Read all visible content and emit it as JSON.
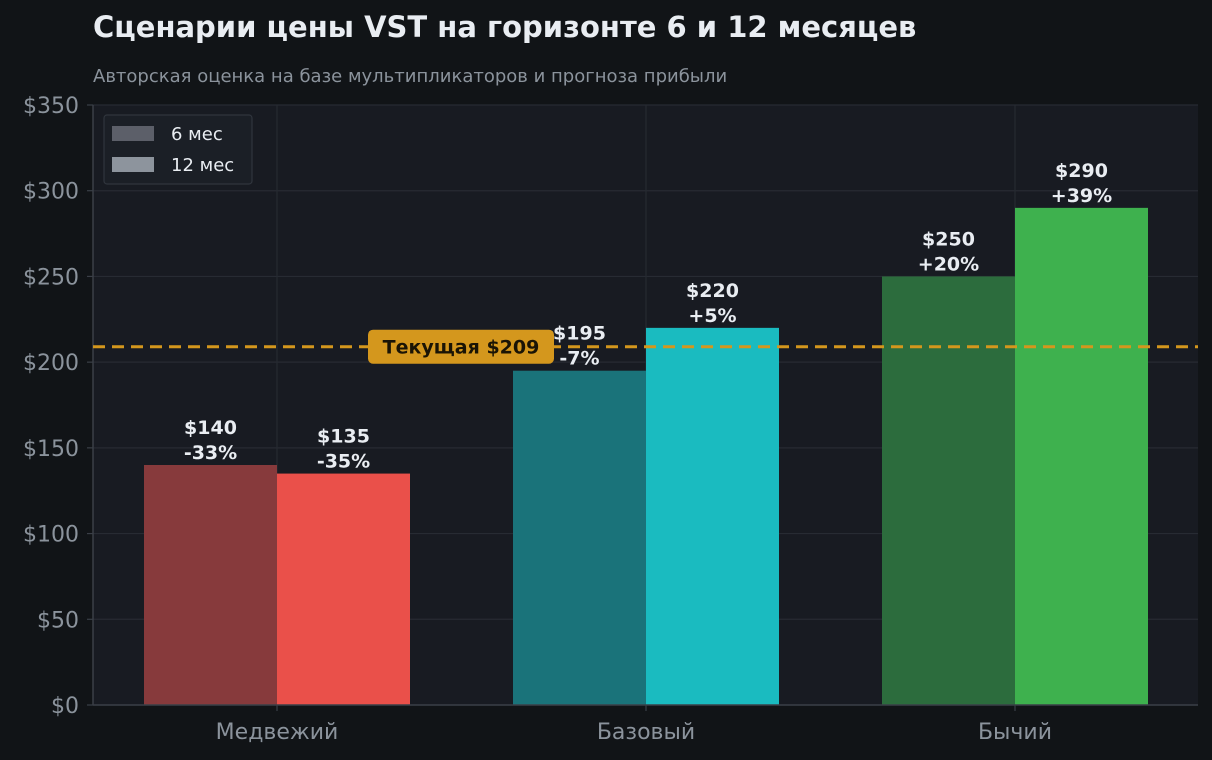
{
  "title": "Сценарии цены VST на горизонте 6 и 12 месяцев",
  "subtitle": "Авторская оценка на базе мультипликаторов и прогноза прибыли",
  "chart_data": {
    "type": "bar",
    "categories": [
      "Медвежий",
      "Базовый",
      "Бычий"
    ],
    "series": [
      {
        "name": "6 мес",
        "values": [
          140,
          195,
          250
        ],
        "labels": [
          "$140\n-33%",
          "$195\n-7%",
          "$250\n+20%"
        ],
        "colors": [
          "#873a3c",
          "#1a737a",
          "#2c6c3d"
        ]
      },
      {
        "name": "12 мес",
        "values": [
          135,
          220,
          290
        ],
        "labels": [
          "$135\n-35%",
          "$220\n+5%",
          "$290\n+39%"
        ],
        "colors": [
          "#ea504a",
          "#1abbc0",
          "#3eb14e"
        ]
      }
    ],
    "ylim": [
      0,
      350
    ],
    "yticks": [
      0,
      50,
      100,
      150,
      200,
      250,
      300,
      350
    ],
    "ytick_labels": [
      "$0",
      "$50",
      "$100",
      "$150",
      "$200",
      "$250",
      "$300",
      "$350"
    ],
    "reference_line": {
      "value": 209,
      "label": "Текущая $209",
      "color": "#d4971d"
    },
    "legend": {
      "placement": "top-left",
      "colors": [
        "#5c5f69",
        "#8d949d"
      ]
    },
    "grid": true
  }
}
